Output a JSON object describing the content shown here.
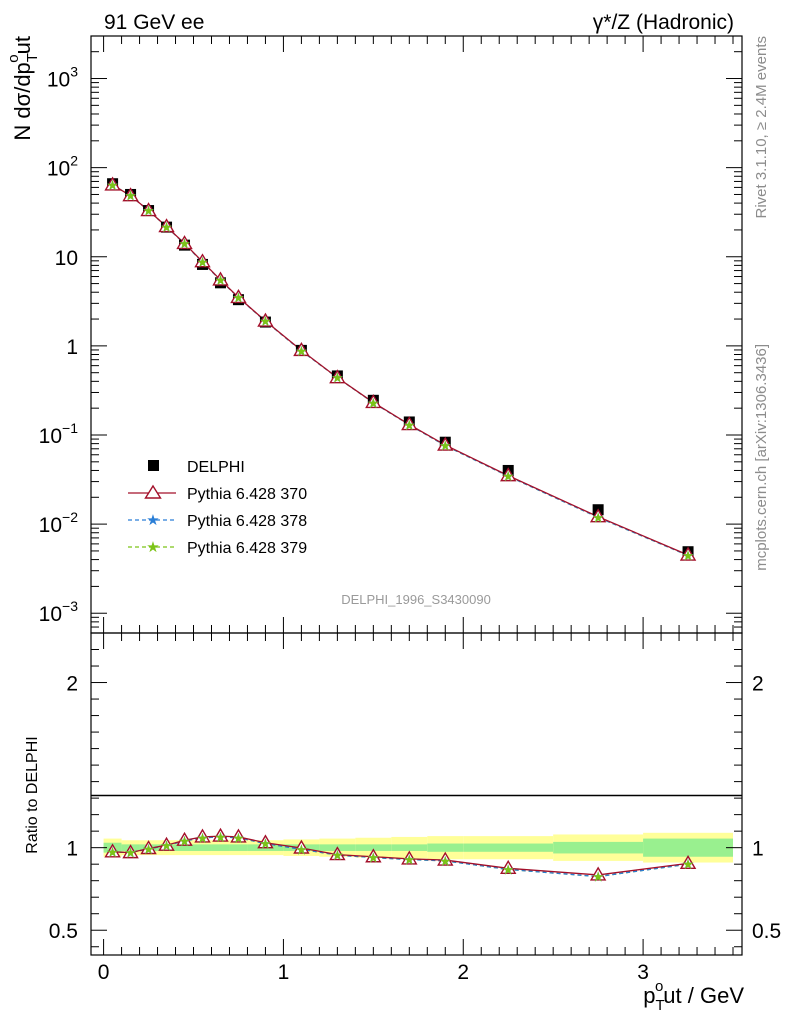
{
  "header": {
    "left": "91 GeV ee",
    "right": "γ*/Z (Hadronic)"
  },
  "side_labels": {
    "rivet": "Rivet 3.1.10, ≥ 2.4M events",
    "mcplots": "mcplots.cern.ch [arXiv:1306.3436]"
  },
  "watermark": "DELPHI_1996_S3430090",
  "colors": {
    "data": "#000000",
    "p370": "#a3102a",
    "p378": "#2a7ed6",
    "p379": "#7cc417",
    "band_inner": "#99f08f",
    "band_outer": "#ffff99"
  },
  "chart_data": [
    {
      "type": "scatter",
      "role": "main",
      "ylabel": "N dσ/dp",
      "ylabel_sub": "T",
      "ylabel_sup": "o",
      "ylabel_tail": "ut",
      "yscale": "log",
      "ylim": [
        0.0006,
        3000
      ],
      "xlim": [
        -0.07,
        3.55
      ],
      "ytick_labels": [
        {
          "v": 0.001,
          "base": "10",
          "exp": "−3"
        },
        {
          "v": 0.01,
          "base": "10",
          "exp": "−2"
        },
        {
          "v": 0.1,
          "base": "10",
          "exp": "−1"
        },
        {
          "v": 1,
          "base": "1",
          "exp": ""
        },
        {
          "v": 10,
          "base": "10",
          "exp": ""
        },
        {
          "v": 100,
          "base": "10",
          "exp": "2"
        },
        {
          "v": 1000,
          "base": "10",
          "exp": "3"
        }
      ],
      "x": [
        0.05,
        0.15,
        0.25,
        0.35,
        0.45,
        0.55,
        0.65,
        0.75,
        0.9,
        1.1,
        1.3,
        1.5,
        1.7,
        1.9,
        2.25,
        2.75,
        3.25
      ],
      "series": [
        {
          "name": "DELPHI",
          "key": "data",
          "values": [
            66,
            50,
            33,
            21.5,
            13.5,
            8.2,
            5.1,
            3.3,
            1.85,
            0.89,
            0.46,
            0.245,
            0.14,
            0.083,
            0.04,
            0.0145,
            0.0049
          ]
        },
        {
          "name": "Pythia 6.428 370",
          "key": "p370",
          "values": [
            64,
            48.5,
            33,
            21.8,
            14.1,
            8.8,
            5.5,
            3.5,
            1.9,
            0.89,
            0.44,
            0.232,
            0.131,
            0.077,
            0.035,
            0.0121,
            0.0045
          ]
        },
        {
          "name": "Pythia 6.428 378",
          "key": "p378",
          "values": [
            64,
            48.5,
            33,
            21.7,
            14.0,
            8.7,
            5.45,
            3.48,
            1.89,
            0.88,
            0.44,
            0.23,
            0.13,
            0.076,
            0.0345,
            0.0119,
            0.00445
          ]
        },
        {
          "name": "Pythia 6.428 379",
          "key": "p379",
          "values": [
            64,
            48.5,
            33,
            21.7,
            14.0,
            8.7,
            5.45,
            3.48,
            1.89,
            0.88,
            0.44,
            0.23,
            0.13,
            0.076,
            0.0345,
            0.0119,
            0.00445
          ]
        }
      ],
      "legend": "left"
    },
    {
      "type": "line",
      "role": "ratio",
      "ylabel": "Ratio to DELPHI",
      "ylim": [
        0.35,
        2.3
      ],
      "xlim": [
        -0.07,
        3.55
      ],
      "yticks": [
        0.5,
        1,
        2
      ],
      "ytick_labels": [
        "0.5",
        "1",
        "2"
      ],
      "xticks": [
        0,
        1,
        2,
        3
      ],
      "xtick_labels": [
        "0",
        "1",
        "2",
        "3"
      ],
      "xlabel": "p",
      "xlabel_sub": "T",
      "xlabel_sup": "o",
      "xlabel_tail": "ut / GeV",
      "band_edges": [
        0,
        0.1,
        0.2,
        0.3,
        0.4,
        0.5,
        0.6,
        0.7,
        0.8,
        1.0,
        1.2,
        1.4,
        1.6,
        1.8,
        2.0,
        2.5,
        3.0,
        3.5
      ],
      "band_inner": [
        0.03,
        0.02,
        0.02,
        0.02,
        0.02,
        0.02,
        0.02,
        0.02,
        0.02,
        0.02,
        0.02,
        0.02,
        0.02,
        0.025,
        0.025,
        0.035,
        0.055
      ],
      "band_outer": [
        0.055,
        0.045,
        0.045,
        0.045,
        0.045,
        0.045,
        0.045,
        0.045,
        0.045,
        0.05,
        0.055,
        0.06,
        0.065,
        0.07,
        0.07,
        0.08,
        0.09
      ],
      "series": [
        {
          "name": "Pythia 6.428 370",
          "key": "p370",
          "values": [
            0.975,
            0.97,
            0.995,
            1.015,
            1.045,
            1.065,
            1.07,
            1.065,
            1.03,
            0.998,
            0.958,
            0.945,
            0.932,
            0.925,
            0.875,
            0.835,
            0.905
          ]
        },
        {
          "name": "Pythia 6.428 378",
          "key": "p378",
          "values": [
            0.975,
            0.97,
            0.993,
            1.013,
            1.04,
            1.06,
            1.065,
            1.06,
            1.025,
            0.99,
            0.955,
            0.94,
            0.928,
            0.92,
            0.868,
            0.825,
            0.9
          ]
        },
        {
          "name": "Pythia 6.428 379",
          "key": "p379",
          "values": [
            0.975,
            0.97,
            0.993,
            1.013,
            1.04,
            1.06,
            1.065,
            1.06,
            1.025,
            0.99,
            0.955,
            0.94,
            0.928,
            0.92,
            0.868,
            0.825,
            0.9
          ]
        }
      ]
    }
  ]
}
